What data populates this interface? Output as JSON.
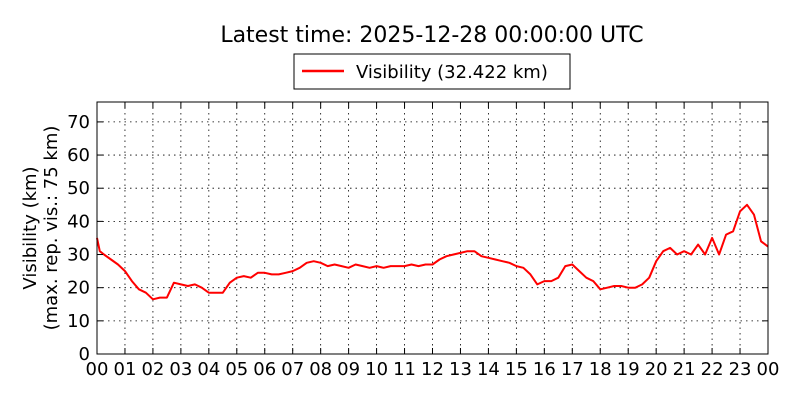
{
  "chart_data": {
    "type": "line",
    "title": "Latest time: 2025-12-28 00:00:00 UTC",
    "ylabel_line1": "Visibility (km)",
    "ylabel_line2": "(max. rep. vis.: 75 km)",
    "xlabel": "",
    "x_ticks": [
      "00",
      "01",
      "02",
      "03",
      "04",
      "05",
      "06",
      "07",
      "08",
      "09",
      "10",
      "11",
      "12",
      "13",
      "14",
      "15",
      "16",
      "17",
      "18",
      "19",
      "20",
      "21",
      "22",
      "23",
      "00"
    ],
    "y_ticks": [
      0,
      10,
      20,
      30,
      40,
      50,
      60,
      70
    ],
    "xlim": [
      0,
      24
    ],
    "ylim": [
      0,
      76
    ],
    "grid": true,
    "legend_position": "top-center",
    "series": [
      {
        "name": "Visibility (32.422 km)",
        "color": "#ff0000",
        "x": [
          0.0,
          0.1,
          0.25,
          0.5,
          0.75,
          1.0,
          1.25,
          1.5,
          1.75,
          2.0,
          2.25,
          2.5,
          2.75,
          3.0,
          3.25,
          3.5,
          3.75,
          4.0,
          4.25,
          4.5,
          4.75,
          5.0,
          5.25,
          5.5,
          5.75,
          6.0,
          6.25,
          6.5,
          6.75,
          7.0,
          7.25,
          7.5,
          7.75,
          8.0,
          8.25,
          8.5,
          8.75,
          9.0,
          9.25,
          9.5,
          9.75,
          10.0,
          10.25,
          10.5,
          10.75,
          11.0,
          11.25,
          11.5,
          11.75,
          12.0,
          12.25,
          12.5,
          12.75,
          13.0,
          13.25,
          13.5,
          13.75,
          14.0,
          14.25,
          14.5,
          14.75,
          15.0,
          15.25,
          15.5,
          15.75,
          16.0,
          16.25,
          16.5,
          16.75,
          17.0,
          17.25,
          17.5,
          17.75,
          18.0,
          18.25,
          18.5,
          18.75,
          19.0,
          19.25,
          19.5,
          19.75,
          20.0,
          20.25,
          20.5,
          20.75,
          21.0,
          21.25,
          21.5,
          21.75,
          22.0,
          22.25,
          22.5,
          22.75,
          23.0,
          23.25,
          23.5,
          23.75,
          24.0
        ],
        "values": [
          35,
          31,
          30,
          28.5,
          27,
          25,
          22,
          19.5,
          18.5,
          16.5,
          17,
          17,
          21.5,
          21,
          20.5,
          21,
          20,
          18.5,
          18.5,
          18.5,
          21.5,
          23,
          23.5,
          23,
          24.5,
          24.5,
          24,
          24,
          24.5,
          25,
          26,
          27.5,
          28,
          27.5,
          26.5,
          27,
          26.5,
          26,
          27,
          26.5,
          26,
          26.5,
          26,
          26.5,
          26.5,
          26.5,
          27,
          26.5,
          27,
          27,
          28.5,
          29.5,
          30,
          30.5,
          31,
          31,
          29.5,
          29,
          28.5,
          28,
          27.5,
          26.5,
          26,
          24,
          21,
          22,
          22,
          23,
          26.5,
          27,
          25,
          23,
          22,
          19.5,
          20,
          20.5,
          20.5,
          20,
          20,
          21,
          23,
          28,
          31,
          32,
          30,
          31,
          30,
          33,
          30,
          35,
          30,
          36,
          37,
          43,
          45,
          42,
          34,
          32.4
        ]
      }
    ]
  }
}
